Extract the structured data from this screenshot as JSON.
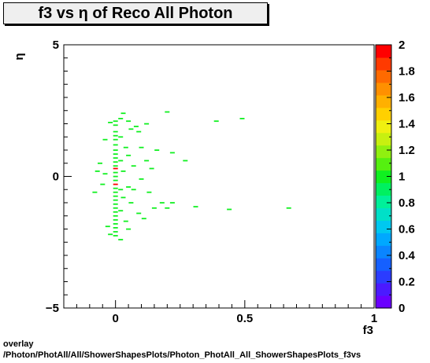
{
  "chart_data": {
    "type": "heatmap",
    "title": "f3 vs  η of Reco All Photon",
    "xlabel": "f3",
    "ylabel": "η",
    "xlim": [
      -0.2,
      1.0
    ],
    "ylim": [
      -5,
      5
    ],
    "x_ticks": [
      "0",
      "0.5",
      "1"
    ],
    "y_ticks": [
      "−5",
      "0",
      "5"
    ],
    "z_range": [
      0,
      2
    ],
    "z_ticks": [
      "0",
      "0.2",
      "0.4",
      "0.6",
      "0.8",
      "1",
      "1.2",
      "1.4",
      "1.6",
      "1.8",
      "2"
    ],
    "palette": [
      "#6a00ff",
      "#4b1aff",
      "#2b3cff",
      "#1560ff",
      "#0a85ff",
      "#00a8ff",
      "#00c8f0",
      "#00e0c8",
      "#00f09a",
      "#00f060",
      "#10f020",
      "#55f010",
      "#90f010",
      "#c8f010",
      "#f0f010",
      "#ffd000",
      "#ffb000",
      "#ff9000",
      "#ff6a00",
      "#ff3a00",
      "#ff0000"
    ],
    "points": [
      {
        "x": 0.0,
        "y": 0.3,
        "v": 2.0
      },
      {
        "x": 0.0,
        "y": -0.3,
        "v": 2.0
      },
      {
        "x": 0.0,
        "y": 2.1,
        "v": 1.0
      },
      {
        "x": 0.0,
        "y": 1.95,
        "v": 1.0
      },
      {
        "x": 0.0,
        "y": 1.7,
        "v": 1.0
      },
      {
        "x": 0.0,
        "y": 1.55,
        "v": 1.0
      },
      {
        "x": 0.0,
        "y": 1.4,
        "v": 1.0
      },
      {
        "x": 0.0,
        "y": 1.2,
        "v": 1.0
      },
      {
        "x": 0.0,
        "y": 1.0,
        "v": 1.0
      },
      {
        "x": 0.0,
        "y": 0.85,
        "v": 1.0
      },
      {
        "x": 0.0,
        "y": 0.7,
        "v": 1.0
      },
      {
        "x": 0.0,
        "y": 0.55,
        "v": 1.0
      },
      {
        "x": 0.0,
        "y": 0.4,
        "v": 1.0
      },
      {
        "x": 0.0,
        "y": 0.15,
        "v": 1.0
      },
      {
        "x": 0.0,
        "y": 0.0,
        "v": 1.0
      },
      {
        "x": 0.0,
        "y": -0.15,
        "v": 1.0
      },
      {
        "x": 0.0,
        "y": -0.45,
        "v": 1.0
      },
      {
        "x": 0.0,
        "y": -0.6,
        "v": 1.0
      },
      {
        "x": 0.0,
        "y": -0.75,
        "v": 1.0
      },
      {
        "x": 0.0,
        "y": -0.9,
        "v": 1.0
      },
      {
        "x": 0.0,
        "y": -1.05,
        "v": 1.0
      },
      {
        "x": 0.0,
        "y": -1.2,
        "v": 1.0
      },
      {
        "x": 0.0,
        "y": -1.35,
        "v": 1.0
      },
      {
        "x": 0.0,
        "y": -1.5,
        "v": 1.0
      },
      {
        "x": 0.0,
        "y": -1.65,
        "v": 1.0
      },
      {
        "x": 0.0,
        "y": -1.8,
        "v": 1.0
      },
      {
        "x": 0.0,
        "y": -1.95,
        "v": 1.0
      },
      {
        "x": 0.0,
        "y": -2.1,
        "v": 1.0
      },
      {
        "x": 0.0,
        "y": -2.25,
        "v": 1.0
      },
      {
        "x": 0.02,
        "y": 2.2,
        "v": 1.0
      },
      {
        "x": 0.02,
        "y": 1.5,
        "v": 1.0
      },
      {
        "x": 0.02,
        "y": 0.6,
        "v": 1.0
      },
      {
        "x": 0.02,
        "y": -0.5,
        "v": 1.0
      },
      {
        "x": 0.02,
        "y": -1.3,
        "v": 1.0
      },
      {
        "x": 0.02,
        "y": -2.4,
        "v": 1.0
      },
      {
        "x": 0.03,
        "y": 2.4,
        "v": 1.0
      },
      {
        "x": 0.03,
        "y": 0.2,
        "v": 1.0
      },
      {
        "x": 0.03,
        "y": -0.8,
        "v": 1.0
      },
      {
        "x": 0.04,
        "y": 1.1,
        "v": 1.0
      },
      {
        "x": 0.04,
        "y": -1.7,
        "v": 1.0
      },
      {
        "x": 0.05,
        "y": 2.1,
        "v": 1.0
      },
      {
        "x": 0.05,
        "y": 0.8,
        "v": 1.0
      },
      {
        "x": 0.05,
        "y": -0.4,
        "v": 1.0
      },
      {
        "x": 0.05,
        "y": -2.0,
        "v": 1.0
      },
      {
        "x": 0.06,
        "y": 1.8,
        "v": 1.0
      },
      {
        "x": 0.06,
        "y": -1.0,
        "v": 1.0
      },
      {
        "x": 0.07,
        "y": 0.4,
        "v": 1.0
      },
      {
        "x": 0.07,
        "y": -0.5,
        "v": 1.0
      },
      {
        "x": 0.08,
        "y": 1.9,
        "v": 1.0
      },
      {
        "x": 0.09,
        "y": 1.7,
        "v": 1.0
      },
      {
        "x": 0.09,
        "y": -1.4,
        "v": 1.0
      },
      {
        "x": 0.1,
        "y": 1.1,
        "v": 1.0
      },
      {
        "x": 0.1,
        "y": -0.1,
        "v": 1.0
      },
      {
        "x": 0.11,
        "y": -1.6,
        "v": 1.0
      },
      {
        "x": 0.12,
        "y": 2.0,
        "v": 1.0
      },
      {
        "x": 0.12,
        "y": 0.6,
        "v": 1.0
      },
      {
        "x": 0.13,
        "y": -0.6,
        "v": 1.0
      },
      {
        "x": 0.14,
        "y": 0.3,
        "v": 1.0
      },
      {
        "x": 0.15,
        "y": -1.2,
        "v": 1.0
      },
      {
        "x": 0.16,
        "y": 1.0,
        "v": 1.0
      },
      {
        "x": 0.18,
        "y": -1.0,
        "v": 1.0
      },
      {
        "x": 0.2,
        "y": 2.45,
        "v": 1.0
      },
      {
        "x": 0.2,
        "y": -1.2,
        "v": 1.0
      },
      {
        "x": 0.22,
        "y": 0.9,
        "v": 1.0
      },
      {
        "x": 0.22,
        "y": -1.0,
        "v": 1.0
      },
      {
        "x": 0.27,
        "y": 0.6,
        "v": 1.0
      },
      {
        "x": 0.31,
        "y": -1.15,
        "v": 1.0
      },
      {
        "x": 0.39,
        "y": 2.1,
        "v": 1.0
      },
      {
        "x": 0.44,
        "y": -1.25,
        "v": 1.0
      },
      {
        "x": 0.49,
        "y": 2.2,
        "v": 1.0
      },
      {
        "x": 0.67,
        "y": -1.2,
        "v": 1.0
      },
      {
        "x": -0.04,
        "y": 1.4,
        "v": 1.0
      },
      {
        "x": -0.04,
        "y": 0.1,
        "v": 1.0
      },
      {
        "x": -0.05,
        "y": -0.3,
        "v": 1.0
      },
      {
        "x": -0.06,
        "y": 0.5,
        "v": 1.0
      },
      {
        "x": -0.03,
        "y": -1.9,
        "v": 1.0
      },
      {
        "x": -0.07,
        "y": 0.2,
        "v": 1.0
      },
      {
        "x": -0.08,
        "y": -0.6,
        "v": 1.0
      },
      {
        "x": -0.02,
        "y": 2.05,
        "v": 1.0
      },
      {
        "x": -0.02,
        "y": -2.2,
        "v": 1.0
      }
    ]
  },
  "footer": {
    "line1": "overlay",
    "line2": "/Photon/PhotAll/All/ShowerShapesPlots/Photon_PhotAll_All_ShowerShapesPlots_f3vs"
  }
}
